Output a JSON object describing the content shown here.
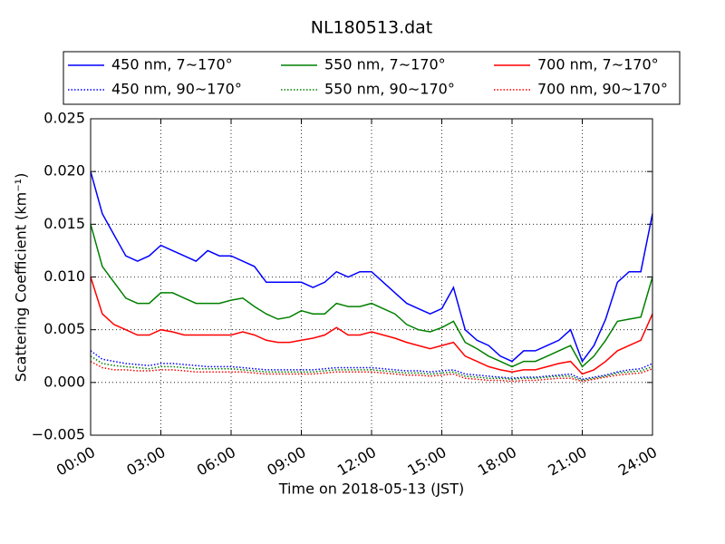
{
  "chart_data": {
    "type": "line",
    "title": "NL180513.dat",
    "xlabel": "Time on 2018-05-13 (JST)",
    "ylabel": "Scattering Coefficient (km⁻¹)",
    "x": [
      0,
      0.5,
      1,
      1.5,
      2,
      2.5,
      3,
      3.5,
      4,
      4.5,
      5,
      5.5,
      6,
      6.5,
      7,
      7.5,
      8,
      8.5,
      9,
      9.5,
      10,
      10.5,
      11,
      11.5,
      12,
      12.5,
      13,
      13.5,
      14,
      14.5,
      15,
      15.5,
      16,
      16.5,
      17,
      17.5,
      18,
      18.5,
      19,
      19.5,
      20,
      20.5,
      21,
      21.5,
      22,
      22.5,
      23,
      23.5,
      24
    ],
    "xlim": [
      0,
      24
    ],
    "xticks": [
      {
        "value": 0,
        "label": "00:00"
      },
      {
        "value": 3,
        "label": "03:00"
      },
      {
        "value": 6,
        "label": "06:00"
      },
      {
        "value": 9,
        "label": "09:00"
      },
      {
        "value": 12,
        "label": "12:00"
      },
      {
        "value": 15,
        "label": "15:00"
      },
      {
        "value": 18,
        "label": "18:00"
      },
      {
        "value": 21,
        "label": "21:00"
      },
      {
        "value": 24,
        "label": "24:00"
      }
    ],
    "ylim": [
      -0.005,
      0.025
    ],
    "yticks": [
      {
        "value": -0.005,
        "label": "−0.005"
      },
      {
        "value": 0,
        "label": "0.000"
      },
      0.005,
      {
        "value": 0.01,
        "label": "0.010"
      },
      0.015,
      {
        "value": 0.02,
        "label": "0.020"
      },
      0.025
    ],
    "grid": true,
    "legend": "top",
    "series": [
      {
        "name": "450 nm, 7∼170°",
        "color": "#0000ff",
        "linestyle": "solid",
        "values": [
          0.02,
          0.016,
          0.014,
          0.012,
          0.0115,
          0.012,
          0.013,
          0.0125,
          0.012,
          0.0115,
          0.0125,
          0.012,
          0.012,
          0.0115,
          0.011,
          0.0095,
          0.0095,
          0.0095,
          0.0095,
          0.009,
          0.0095,
          0.0105,
          0.01,
          0.0105,
          0.0105,
          0.0095,
          0.0085,
          0.0075,
          0.007,
          0.0065,
          0.007,
          0.009,
          0.005,
          0.004,
          0.0035,
          0.0025,
          0.002,
          0.003,
          0.003,
          0.0035,
          0.004,
          0.005,
          0.002,
          0.0035,
          0.006,
          0.0095,
          0.0105,
          0.0105,
          0.016
        ]
      },
      {
        "name": "450 nm, 90∼170°",
        "color": "#0000ff",
        "linestyle": "dotted",
        "values": [
          0.003,
          0.0022,
          0.002,
          0.0018,
          0.0017,
          0.0016,
          0.0018,
          0.0018,
          0.0017,
          0.0016,
          0.0015,
          0.0015,
          0.0015,
          0.0014,
          0.0013,
          0.0012,
          0.0012,
          0.0012,
          0.0012,
          0.0012,
          0.0013,
          0.0014,
          0.0014,
          0.0014,
          0.0014,
          0.0013,
          0.0012,
          0.0011,
          0.0011,
          0.001,
          0.0011,
          0.0012,
          0.0008,
          0.0007,
          0.0006,
          0.0005,
          0.0004,
          0.0005,
          0.0005,
          0.0006,
          0.0007,
          0.0008,
          0.0003,
          0.0005,
          0.0007,
          0.001,
          0.0012,
          0.0013,
          0.0018
        ]
      },
      {
        "name": "550 nm, 7∼170°",
        "color": "#008000",
        "linestyle": "solid",
        "values": [
          0.015,
          0.011,
          0.0095,
          0.008,
          0.0075,
          0.0075,
          0.0085,
          0.0085,
          0.008,
          0.0075,
          0.0075,
          0.0075,
          0.0078,
          0.008,
          0.0072,
          0.0065,
          0.006,
          0.0062,
          0.0068,
          0.0065,
          0.0065,
          0.0075,
          0.0072,
          0.0072,
          0.0075,
          0.007,
          0.0065,
          0.0055,
          0.005,
          0.0048,
          0.0052,
          0.0058,
          0.0038,
          0.0032,
          0.0025,
          0.002,
          0.0015,
          0.002,
          0.002,
          0.0025,
          0.003,
          0.0035,
          0.0015,
          0.0025,
          0.004,
          0.0058,
          0.006,
          0.0062,
          0.01
        ]
      },
      {
        "name": "550 nm, 90∼170°",
        "color": "#008000",
        "linestyle": "dotted",
        "values": [
          0.0025,
          0.0018,
          0.0016,
          0.0015,
          0.0014,
          0.0013,
          0.0015,
          0.0015,
          0.0014,
          0.0013,
          0.0013,
          0.0013,
          0.0013,
          0.0012,
          0.0011,
          0.001,
          0.001,
          0.001,
          0.001,
          0.001,
          0.0011,
          0.0012,
          0.0012,
          0.0012,
          0.0012,
          0.0011,
          0.001,
          0.0009,
          0.0009,
          0.0008,
          0.0009,
          0.001,
          0.0006,
          0.0005,
          0.0004,
          0.0004,
          0.0003,
          0.0004,
          0.0004,
          0.0005,
          0.0006,
          0.0006,
          0.0002,
          0.0004,
          0.0006,
          0.0009,
          0.001,
          0.0011,
          0.0015
        ]
      },
      {
        "name": "700 nm, 7∼170°",
        "color": "#ff0000",
        "linestyle": "solid",
        "values": [
          0.01,
          0.0065,
          0.0055,
          0.005,
          0.0045,
          0.0045,
          0.005,
          0.0048,
          0.0045,
          0.0045,
          0.0045,
          0.0045,
          0.0045,
          0.0048,
          0.0045,
          0.004,
          0.0038,
          0.0038,
          0.004,
          0.0042,
          0.0045,
          0.0052,
          0.0045,
          0.0045,
          0.0048,
          0.0045,
          0.0042,
          0.0038,
          0.0035,
          0.0032,
          0.0035,
          0.0038,
          0.0025,
          0.002,
          0.0015,
          0.0012,
          0.001,
          0.0012,
          0.0012,
          0.0015,
          0.0018,
          0.002,
          0.0008,
          0.0012,
          0.002,
          0.003,
          0.0035,
          0.004,
          0.0065
        ]
      },
      {
        "name": "700 nm, 90∼170°",
        "color": "#ff0000",
        "linestyle": "dotted",
        "values": [
          0.002,
          0.0014,
          0.0012,
          0.0012,
          0.0011,
          0.0011,
          0.0012,
          0.0012,
          0.0011,
          0.001,
          0.001,
          0.001,
          0.001,
          0.001,
          0.0009,
          0.0008,
          0.0008,
          0.0008,
          0.0008,
          0.0008,
          0.0009,
          0.001,
          0.001,
          0.001,
          0.001,
          0.0009,
          0.0008,
          0.0007,
          0.0007,
          0.0006,
          0.0007,
          0.0008,
          0.0004,
          0.0003,
          0.0002,
          0.0002,
          0.0001,
          0.0002,
          0.0002,
          0.0003,
          0.0004,
          0.0004,
          0.0001,
          0.0003,
          0.0005,
          0.0007,
          0.0008,
          0.0009,
          0.0013
        ]
      }
    ]
  }
}
